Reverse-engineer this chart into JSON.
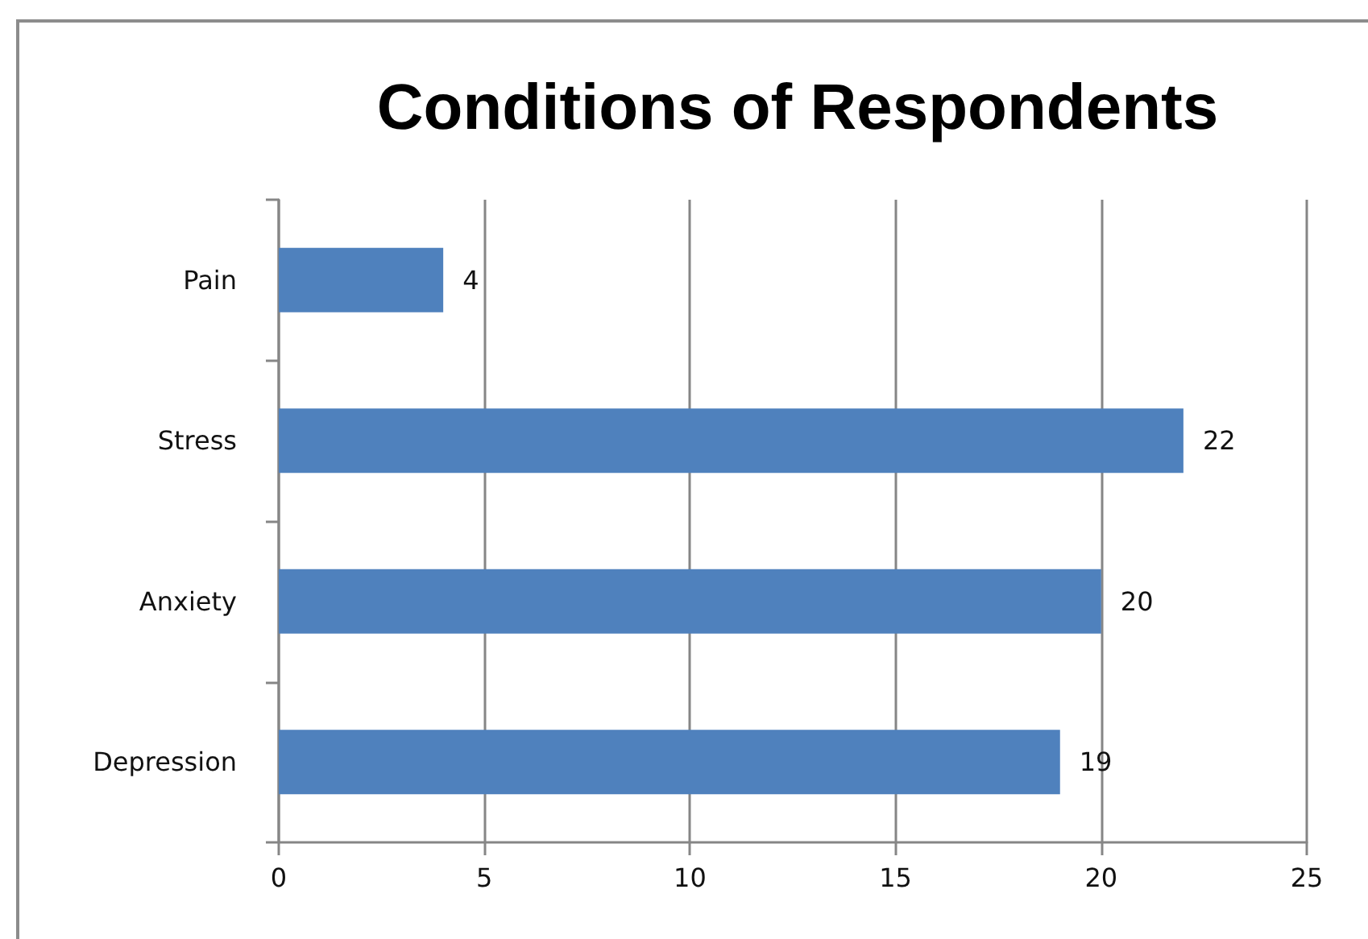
{
  "chart_data": {
    "type": "bar",
    "title": "Conditions of Respondents",
    "orientation": "horizontal",
    "categories": [
      "Pain",
      "Stress",
      "Anxiety",
      "Depression"
    ],
    "values": [
      4,
      22,
      20,
      19
    ],
    "color": "#4f81bd",
    "xlim": [
      0,
      25
    ],
    "xticks": [
      0,
      5,
      10,
      15,
      20,
      25
    ],
    "grid": "x",
    "data_labels": true
  }
}
